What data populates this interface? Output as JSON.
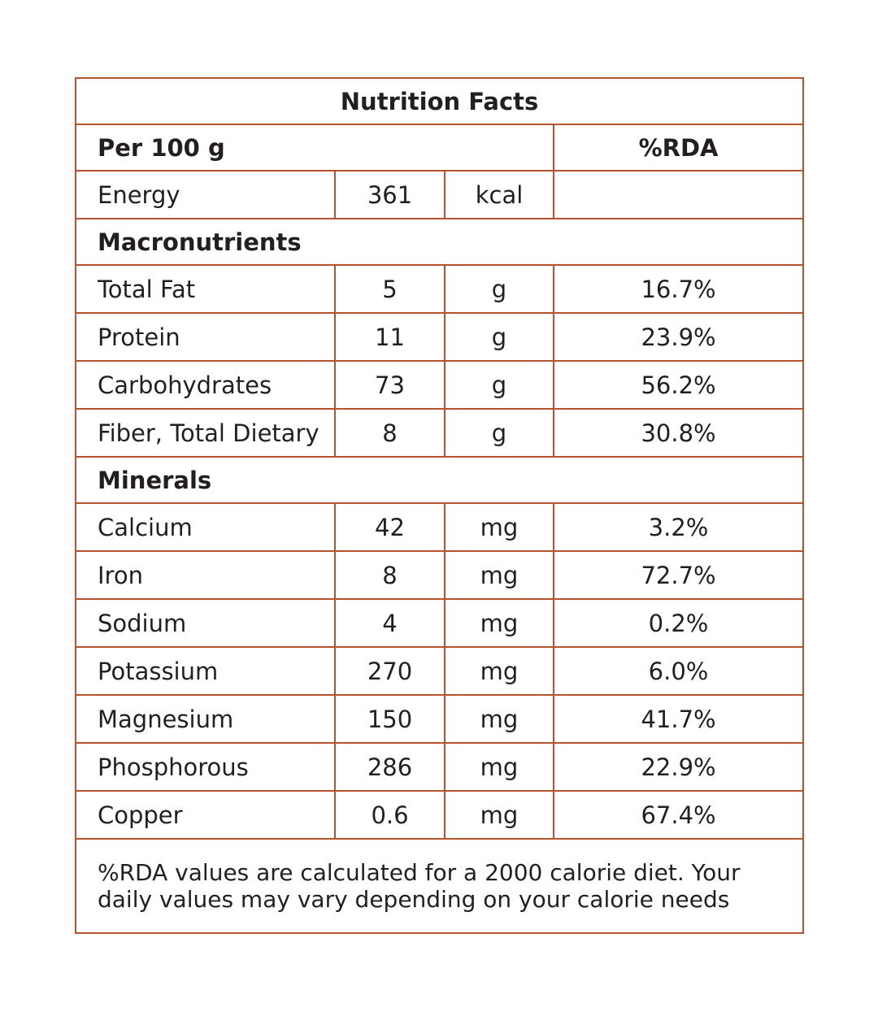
{
  "title": "Nutrition Facts",
  "header": {
    "label": "Per 100 g",
    "rda": "%RDA"
  },
  "energy": {
    "name": "Energy",
    "amount": 361,
    "unit": "kcal"
  },
  "sections": [
    {
      "title": "Macronutrients",
      "rows": [
        {
          "name": "Total Fat",
          "amount": 5,
          "unit": "g",
          "rda": "16.7%"
        },
        {
          "name": "Protein",
          "amount": 11,
          "unit": "g",
          "rda": "23.9%"
        },
        {
          "name": "Carbohydrates",
          "amount": 73,
          "unit": "g",
          "rda": "56.2%"
        },
        {
          "name": "Fiber, Total Dietary",
          "amount": 8,
          "unit": "g",
          "rda": "30.8%"
        }
      ]
    },
    {
      "title": "Minerals",
      "rows": [
        {
          "name": "Calcium",
          "amount": 42,
          "unit": "mg",
          "rda": "3.2%"
        },
        {
          "name": "Iron",
          "amount": 8,
          "unit": "mg",
          "rda": "72.7%"
        },
        {
          "name": "Sodium",
          "amount": 4,
          "unit": "mg",
          "rda": "0.2%"
        },
        {
          "name": "Potassium",
          "amount": 270,
          "unit": "mg",
          "rda": "6.0%"
        },
        {
          "name": "Magnesium",
          "amount": 150,
          "unit": "mg",
          "rda": "41.7%"
        },
        {
          "name": "Phosphorous",
          "amount": 286,
          "unit": "mg",
          "rda": "22.9%"
        },
        {
          "name": "Copper",
          "amount": 0.6,
          "unit": "mg",
          "rda": "67.4%"
        }
      ]
    }
  ],
  "footnote": "%RDA values are calculated for a 2000 calorie diet. Your daily values may vary depending on your calorie needs"
}
